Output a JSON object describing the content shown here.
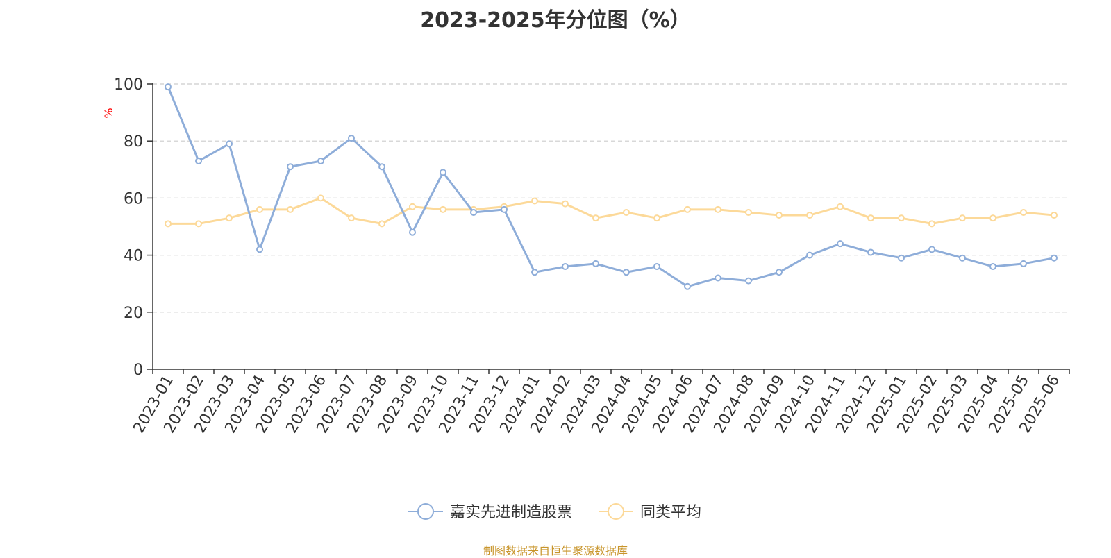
{
  "source_text": "制图数据来自恒生聚源数据库",
  "colors": {
    "series1": "#8eadd9",
    "series2": "#fcd999",
    "source": "#c8952b",
    "unit": "#ff0000",
    "grid": "#cccccc",
    "axis": "#333333"
  },
  "chart_data": {
    "type": "line",
    "title": "2023-2025年分位图（%）",
    "ylabel": "%",
    "xlabel": "",
    "ylim": [
      0,
      100
    ],
    "yticks": [
      0,
      20,
      40,
      60,
      80,
      100
    ],
    "grid": true,
    "legend_position": "bottom",
    "categories": [
      "2023-01",
      "2023-02",
      "2023-03",
      "2023-04",
      "2023-05",
      "2023-06",
      "2023-07",
      "2023-08",
      "2023-09",
      "2023-10",
      "2023-11",
      "2023-12",
      "2024-01",
      "2024-02",
      "2024-03",
      "2024-04",
      "2024-05",
      "2024-06",
      "2024-07",
      "2024-08",
      "2024-09",
      "2024-10",
      "2024-11",
      "2024-12",
      "2025-01",
      "2025-02",
      "2025-03",
      "2025-04",
      "2025-05",
      "2025-06"
    ],
    "series": [
      {
        "name": "嘉实先进制造股票",
        "color": "#8eadd9",
        "values": [
          99,
          73,
          79,
          42,
          71,
          73,
          81,
          71,
          48,
          69,
          55,
          56,
          34,
          36,
          37,
          34,
          36,
          29,
          32,
          31,
          34,
          40,
          44,
          41,
          39,
          42,
          39,
          36,
          37,
          39
        ]
      },
      {
        "name": "同类平均",
        "color": "#fcd999",
        "values": [
          51,
          51,
          53,
          56,
          56,
          60,
          53,
          51,
          57,
          56,
          56,
          57,
          59,
          58,
          53,
          55,
          53,
          56,
          56,
          55,
          54,
          54,
          57,
          53,
          53,
          51,
          53,
          53,
          55,
          54
        ]
      }
    ]
  }
}
